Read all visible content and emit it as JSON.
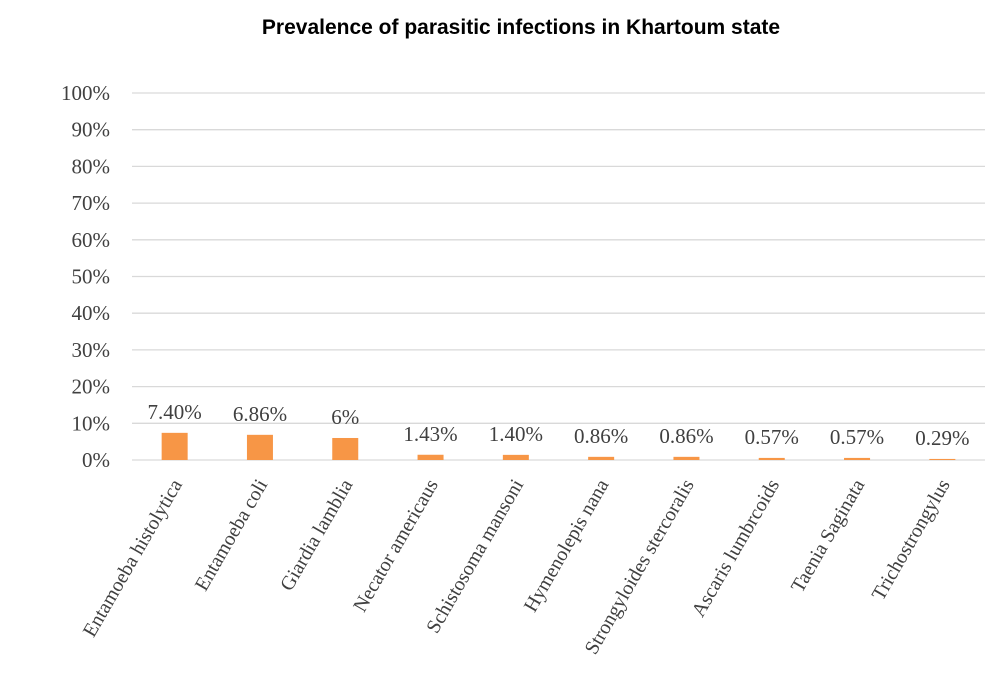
{
  "chart_data": {
    "type": "bar",
    "title": "Prevalence of parasitic infections in Khartoum state",
    "xlabel": "",
    "ylabel": "",
    "ylim": [
      0,
      100
    ],
    "grid": true,
    "legend": "none",
    "bar_color": "#f79646",
    "y_ticks": [
      "0%",
      "10%",
      "20%",
      "30%",
      "40%",
      "50%",
      "60%",
      "70%",
      "80%",
      "90%",
      "100%"
    ],
    "categories": [
      "Entamoeba histolytica",
      "Entamoeba coli",
      "Giardia lamblia",
      "Necator americaus",
      "Schistosoma mansoni",
      "Hymenolepis nana",
      "Strongyloides stercoralis",
      "Ascaris lumbrcoids",
      "Taenia Saginata",
      "Trichostrongylus"
    ],
    "values": [
      7.4,
      6.86,
      6,
      1.43,
      1.4,
      0.86,
      0.86,
      0.57,
      0.57,
      0.29
    ],
    "data_labels": [
      "7.40%",
      "6.86%",
      "6%",
      "1.43%",
      "1.40%",
      "0.86%",
      "0.86%",
      "0.57%",
      "0.57%",
      "0.29%"
    ]
  }
}
